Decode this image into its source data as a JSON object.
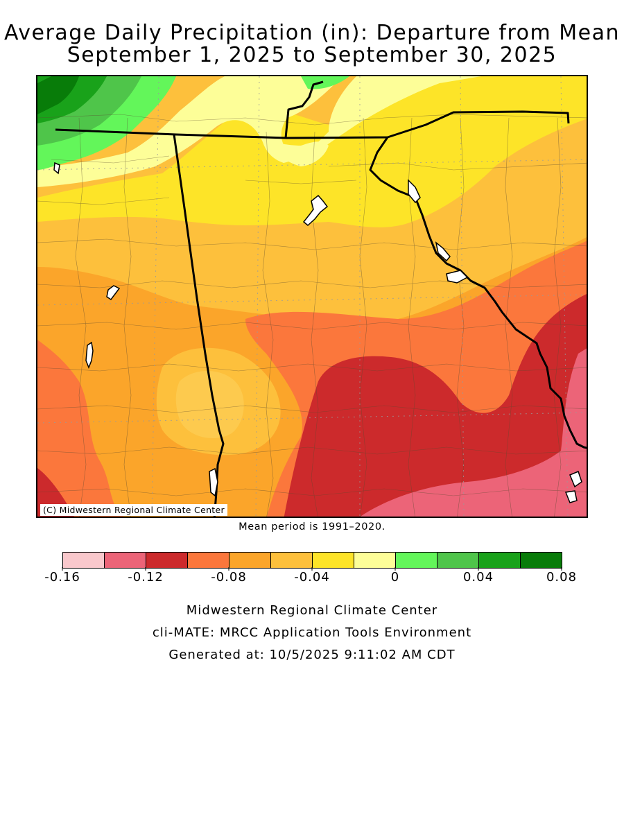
{
  "title": {
    "line1": "Average Daily Precipitation (in): Departure from Mean",
    "line2": "September 1, 2025 to September 30, 2025"
  },
  "map": {
    "copyright": "(C) Midwestern Regional Climate Center",
    "mean_note": "Mean period is 1991–2020."
  },
  "legend": {
    "colors": [
      "#f9c8cc",
      "#ec6478",
      "#cc2a2c",
      "#fb773c",
      "#fba52a",
      "#fdc03c",
      "#fde428",
      "#fdfe98",
      "#63f65a",
      "#4fc54a",
      "#19a21a",
      "#087c09"
    ],
    "tick_labels": [
      "-0.16",
      "-0.12",
      "-0.08",
      "-0.04",
      "0",
      "0.04",
      "0.08"
    ]
  },
  "footer": {
    "line1": "Midwestern Regional Climate Center",
    "line2": "cli-MATE: MRCC Application Tools Environment",
    "line3": "Generated at: 10/5/2025 9:11:02 AM CDT"
  }
}
